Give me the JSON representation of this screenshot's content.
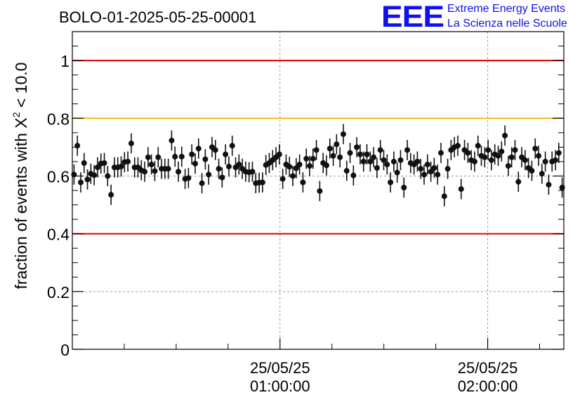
{
  "chart_data": {
    "type": "scatter",
    "title": "BOLO-01-2025-05-25-00001",
    "ylabel_prefix": "fraction of events with X",
    "ylabel_sup": "2",
    "ylabel_suffix": " < 10.0",
    "xlabel": "",
    "ylim": [
      0,
      1.1
    ],
    "yticks": [
      "0",
      "0.2",
      "0.4",
      "0.6",
      "0.8",
      "1"
    ],
    "ytick_values": [
      0,
      0.2,
      0.4,
      0.6,
      0.8,
      1.0
    ],
    "grid": true,
    "xlim_minutes": [
      0,
      142
    ],
    "xtick_labels": [
      {
        "minute": 60,
        "date": "25/05/25",
        "time": "01:00:00"
      },
      {
        "minute": 120,
        "date": "25/05/25",
        "time": "02:00:00"
      }
    ],
    "reference_lines": [
      {
        "y": 1.0,
        "color": "#dd0000"
      },
      {
        "y": 0.8,
        "color": "#ffbb00"
      },
      {
        "y": 0.4,
        "color": "#dd0000"
      }
    ],
    "error": 0.035,
    "point_color": "#111111",
    "values": [
      0.605,
      0.705,
      0.578,
      0.645,
      0.588,
      0.608,
      0.603,
      0.63,
      0.643,
      0.645,
      0.6,
      0.535,
      0.63,
      0.63,
      0.633,
      0.648,
      0.65,
      0.713,
      0.63,
      0.63,
      0.62,
      0.615,
      0.665,
      0.64,
      0.617,
      0.665,
      0.625,
      0.625,
      0.625,
      0.723,
      0.667,
      0.615,
      0.667,
      0.59,
      0.593,
      0.675,
      0.643,
      0.695,
      0.575,
      0.658,
      0.605,
      0.7,
      0.69,
      0.625,
      0.595,
      0.675,
      0.633,
      0.705,
      0.63,
      0.64,
      0.625,
      0.615,
      0.613,
      0.615,
      0.575,
      0.577,
      0.578,
      0.638,
      0.645,
      0.655,
      0.665,
      0.675,
      0.59,
      0.64,
      0.632,
      0.6,
      0.627,
      0.64,
      0.578,
      0.66,
      0.635,
      0.66,
      0.69,
      0.548,
      0.645,
      0.637,
      0.695,
      0.67,
      0.71,
      0.665,
      0.745,
      0.618,
      0.68,
      0.602,
      0.7,
      0.675,
      0.65,
      0.675,
      0.65,
      0.665,
      0.628,
      0.69,
      0.655,
      0.64,
      0.578,
      0.65,
      0.612,
      0.655,
      0.56,
      0.69,
      0.645,
      0.64,
      0.65,
      0.625,
      0.605,
      0.64,
      0.615,
      0.628,
      0.605,
      0.68,
      0.53,
      0.625,
      0.69,
      0.7,
      0.705,
      0.555,
      0.69,
      0.68,
      0.655,
      0.65,
      0.705,
      0.67,
      0.665,
      0.69,
      0.655,
      0.675,
      0.67,
      0.685,
      0.74,
      0.635,
      0.665,
      0.69,
      0.58,
      0.665,
      0.655,
      0.628,
      0.618,
      0.695,
      0.67,
      0.608,
      0.65,
      0.57,
      0.65,
      0.655,
      0.68,
      0.56
    ]
  },
  "logo": {
    "mark": "EEE",
    "line1": "Extreme Energy Events",
    "line2": "La Scienza nelle Scuole"
  }
}
